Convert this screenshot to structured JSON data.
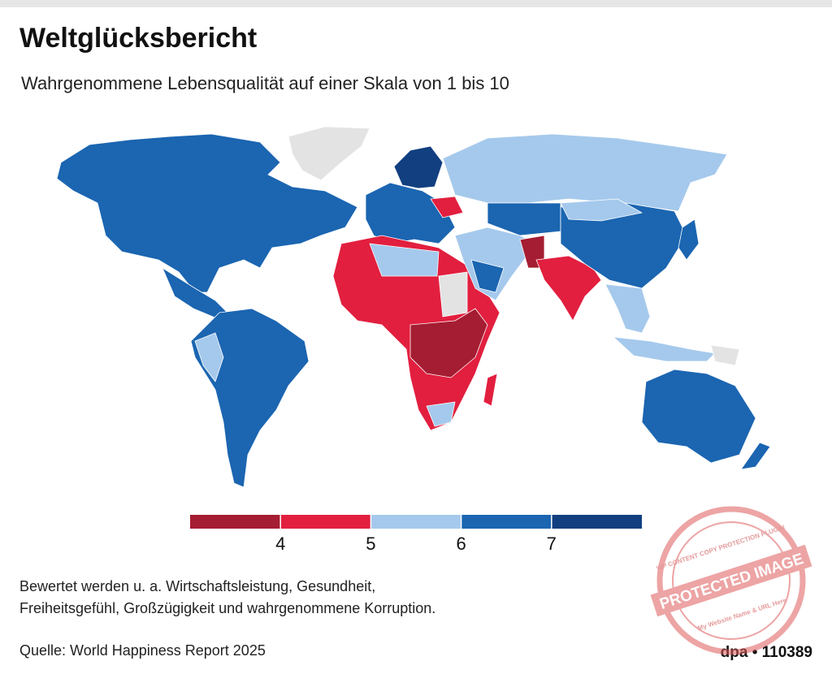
{
  "title": "Weltglücksbericht",
  "subtitle": "Wahrgenommene Lebensqualität auf einer Skala von 1 bis 10",
  "legend": {
    "bins": [
      3,
      4,
      5,
      6,
      7,
      8
    ],
    "ticks": [
      4,
      5,
      6,
      7
    ],
    "colors": [
      "#a51d32",
      "#e21f3f",
      "#a5c9ec",
      "#1b65b1",
      "#123f80"
    ]
  },
  "footnote": [
    "Bewertet werden u. a. Wirtschaftsleistung, Gesundheit,",
    "Freiheitsgefühl, Großzügigkeit und wahrgenommene Korruption."
  ],
  "source": "Quelle: World Happiness Report 2025",
  "credit": "dpa • 110389",
  "watermark": {
    "main": "PROTECTED IMAGE",
    "top": "WP CONTENT COPY PROTECTION PLUGIN",
    "bottom": "My Website Name & URL Here"
  }
}
